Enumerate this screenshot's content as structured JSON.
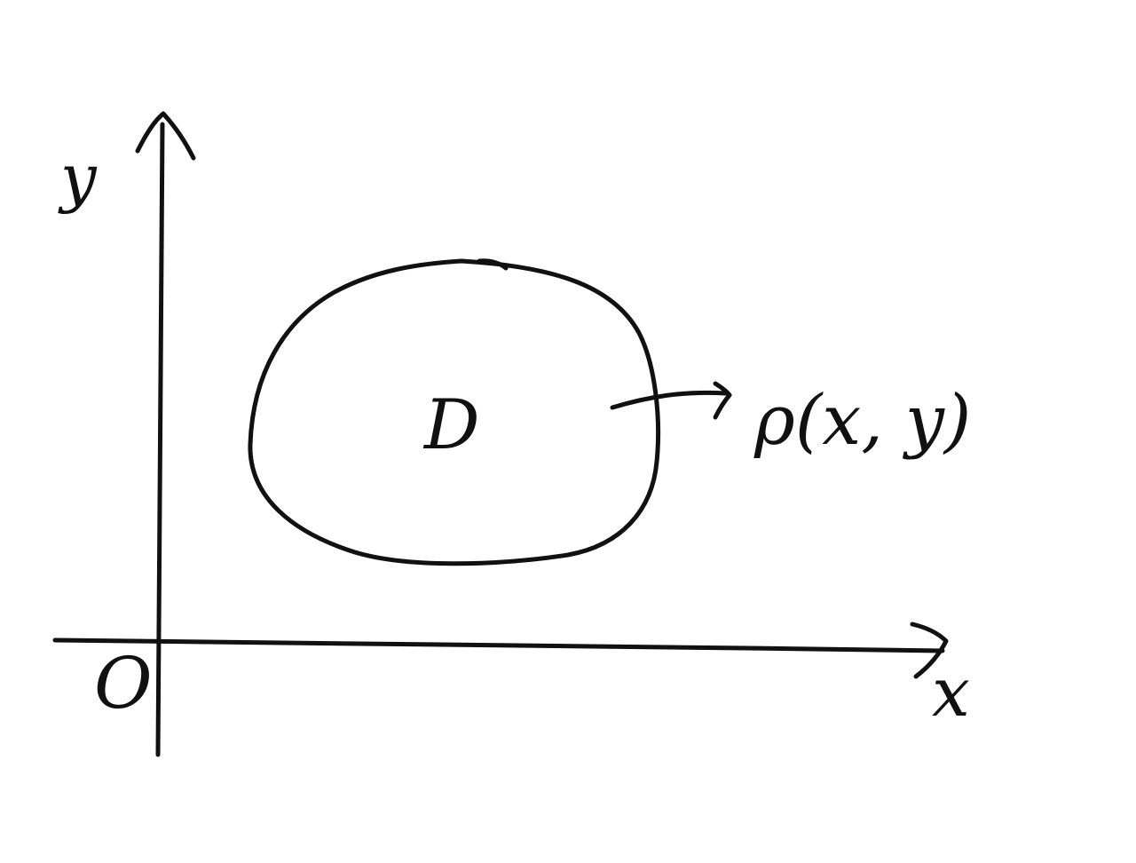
{
  "diagram": {
    "axes": {
      "x_label": "x",
      "y_label": "y",
      "origin_label": "O"
    },
    "region": {
      "label": "D"
    },
    "density": {
      "label": "ρ(x, y)"
    },
    "colors": {
      "ink": "#111111",
      "background": "#ffffff"
    }
  }
}
